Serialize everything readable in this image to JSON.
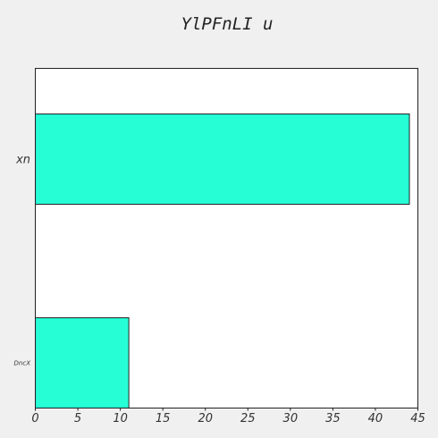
{
  "chart_data": {
    "type": "bar",
    "orientation": "horizontal",
    "title": "YlPFnLI u",
    "xlabel": "",
    "ylabel": "",
    "categories": [
      "xn",
      "DncX"
    ],
    "values": [
      44,
      11
    ],
    "xlim": [
      0,
      45
    ],
    "xticks": [
      0,
      5,
      10,
      15,
      20,
      25,
      30,
      35,
      40,
      45
    ],
    "grid": false,
    "legend": "none",
    "colors": {
      "bar_fill": "#26ffd6",
      "bar_stroke": "#222222",
      "frame": "#222222",
      "plot_bg": "#ffffff",
      "page_bg": "#f0f0f0"
    }
  }
}
